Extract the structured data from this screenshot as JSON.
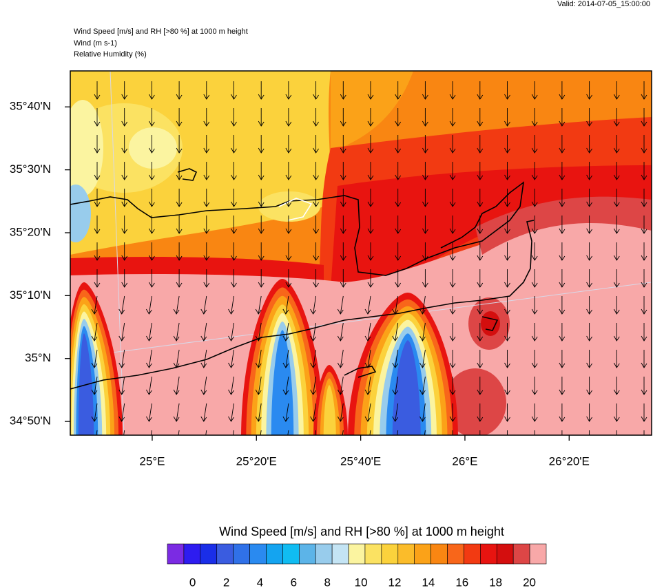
{
  "header": {
    "valid": "Valid: 2014-07-05_15:00:00",
    "lines": [
      "Wind Speed [m/s] and RH [>80 %] at 1000 m height",
      "Wind   (m s-1)",
      "Relative Humidity   (%)"
    ]
  },
  "map": {
    "xlim": [
      24.738,
      26.597
    ],
    "ylim": [
      34.797,
      35.762
    ],
    "xticks": [
      {
        "value": 25,
        "label": "25°E"
      },
      {
        "value": 25.3333,
        "label": "25°20'E"
      },
      {
        "value": 25.6667,
        "label": "25°40'E"
      },
      {
        "value": 26,
        "label": "26°E"
      },
      {
        "value": 26.3333,
        "label": "26°20'E"
      }
    ],
    "yticks": [
      {
        "value": 34.8333,
        "label": "34°50'N"
      },
      {
        "value": 35,
        "label": "35°N"
      },
      {
        "value": 35.1667,
        "label": "35°10'N"
      },
      {
        "value": 35.3333,
        "label": "35°20'N"
      },
      {
        "value": 35.5,
        "label": "35°30'N"
      },
      {
        "value": 35.6667,
        "label": "35°40'N"
      }
    ]
  },
  "colorbar": {
    "title": "Wind Speed [m/s] and RH [>80 %] at 1000 m height",
    "colors": [
      "#7b2be3",
      "#2e1cf0",
      "#1a2ee8",
      "#3a5ce0",
      "#3071e8",
      "#2a8af0",
      "#14a4f0",
      "#10bcf2",
      "#5cb4e8",
      "#98ccec",
      "#c4e4f4",
      "#fbf4a0",
      "#fbe262",
      "#fbd23c",
      "#fbbc2a",
      "#fba218",
      "#f98612",
      "#f8661a",
      "#f23a12",
      "#e81410",
      "#d40e0e",
      "#dd4646",
      "#f8a8a8"
    ],
    "ticks": [
      0,
      2,
      4,
      6,
      8,
      10,
      12,
      14,
      16,
      18,
      20
    ]
  }
}
